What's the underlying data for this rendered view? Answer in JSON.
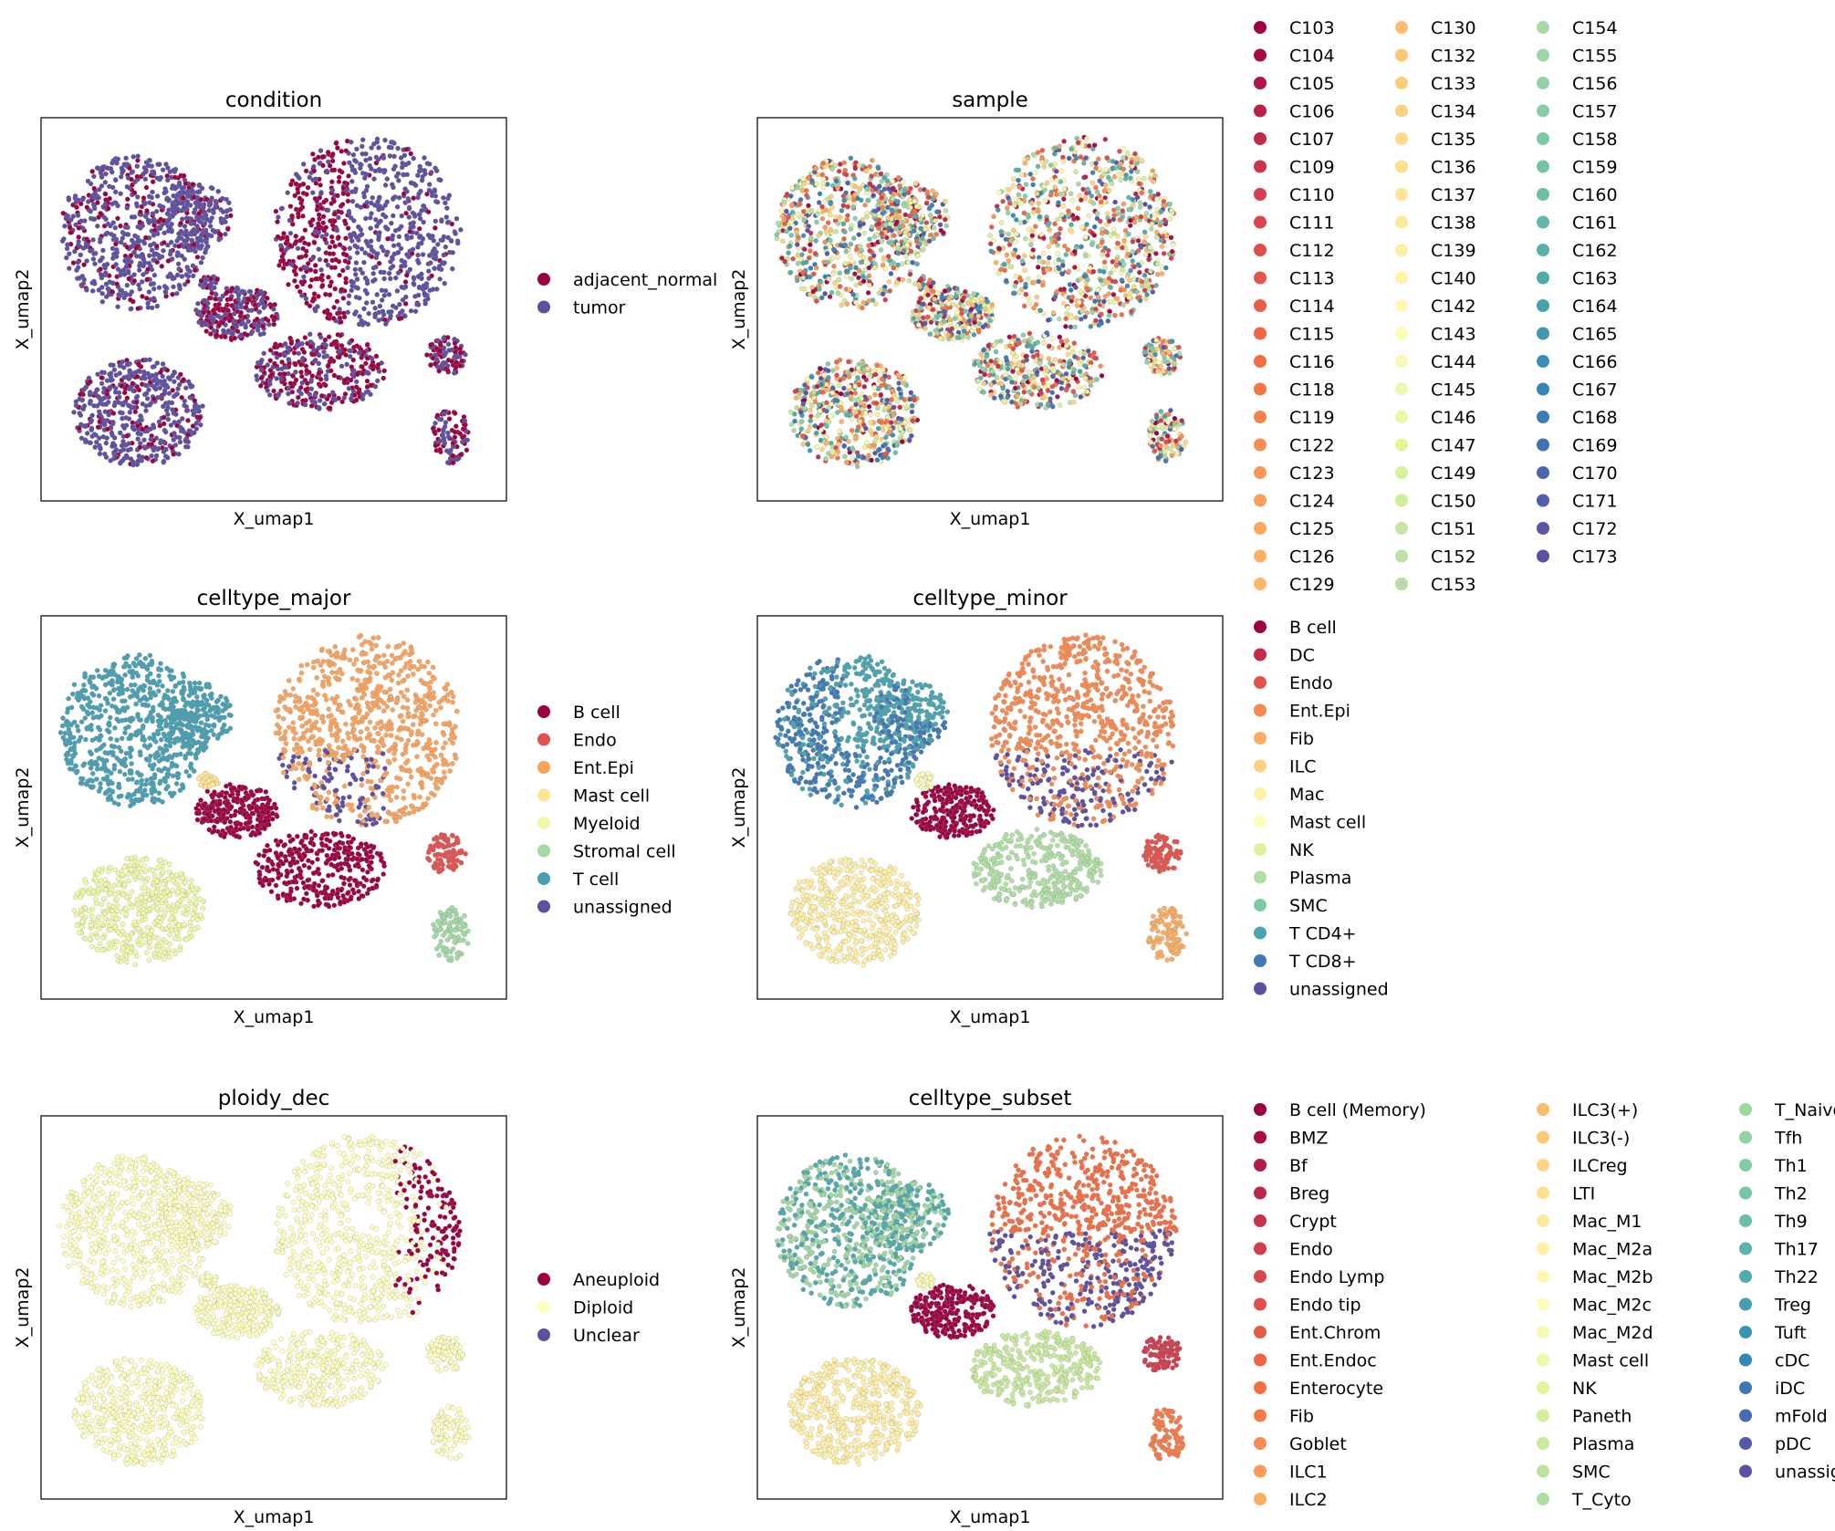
{
  "chart_data": [
    {
      "type": "scatter",
      "title": "condition",
      "xlabel": "X_umap1",
      "ylabel": "X_umap2",
      "grid": false,
      "legend_position": "right",
      "colors": {
        "base": "#5e4fa2",
        "accent": "#9e0142"
      },
      "categories": [
        {
          "label": "adjacent_normal",
          "color": "#9e0142"
        },
        {
          "label": "tumor",
          "color": "#5e4fa2"
        }
      ]
    },
    {
      "type": "scatter",
      "title": "sample",
      "xlabel": "X_umap1",
      "ylabel": "X_umap2",
      "grid": false,
      "legend_position": "right",
      "colors": {
        "base": "#e6f598",
        "accent": "#f46d43"
      },
      "categories": [
        {
          "label": "C103",
          "color": "#9e0142"
        },
        {
          "label": "C104",
          "color": "#a70b44"
        },
        {
          "label": "C105",
          "color": "#b11546"
        },
        {
          "label": "C106",
          "color": "#ba1f48"
        },
        {
          "label": "C107",
          "color": "#c3294a"
        },
        {
          "label": "C109",
          "color": "#cc334c"
        },
        {
          "label": "C110",
          "color": "#d53e4f"
        },
        {
          "label": "C111",
          "color": "#da464d"
        },
        {
          "label": "C112",
          "color": "#df4e4b"
        },
        {
          "label": "C113",
          "color": "#e4564a"
        },
        {
          "label": "C114",
          "color": "#e95d47"
        },
        {
          "label": "C115",
          "color": "#ef6545"
        },
        {
          "label": "C116",
          "color": "#f46d43"
        },
        {
          "label": "C118",
          "color": "#f57748"
        },
        {
          "label": "C119",
          "color": "#f7814c"
        },
        {
          "label": "C122",
          "color": "#f88c51"
        },
        {
          "label": "C123",
          "color": "#f99555"
        },
        {
          "label": "C124",
          "color": "#fa9e5a"
        },
        {
          "label": "C125",
          "color": "#fca75e"
        },
        {
          "label": "C126",
          "color": "#fdb063"
        },
        {
          "label": "C129",
          "color": "#fdb768"
        },
        {
          "label": "C130",
          "color": "#fdbe6e"
        },
        {
          "label": "C132",
          "color": "#fdc574"
        },
        {
          "label": "C133",
          "color": "#fdcc7a"
        },
        {
          "label": "C134",
          "color": "#fed380"
        },
        {
          "label": "C135",
          "color": "#feda86"
        },
        {
          "label": "C136",
          "color": "#fee08b"
        },
        {
          "label": "C137",
          "color": "#fee593"
        },
        {
          "label": "C138",
          "color": "#feea9b"
        },
        {
          "label": "C139",
          "color": "#ffefa3"
        },
        {
          "label": "C140",
          "color": "#fff4ab"
        },
        {
          "label": "C142",
          "color": "#fff9b3"
        },
        {
          "label": "C143",
          "color": "#fbfcb7"
        },
        {
          "label": "C144",
          "color": "#f6fab3"
        },
        {
          "label": "C145",
          "color": "#f0f8ae"
        },
        {
          "label": "C146",
          "color": "#ebf6a9"
        },
        {
          "label": "C147",
          "color": "#e6f598"
        },
        {
          "label": "C149",
          "color": "#dbf09b"
        },
        {
          "label": "C150",
          "color": "#d0ec9e"
        },
        {
          "label": "C151",
          "color": "#c5e7a1"
        },
        {
          "label": "C152",
          "color": "#bbe3a4"
        },
        {
          "label": "C153",
          "color": "#b0dea6"
        },
        {
          "label": "C154",
          "color": "#a6daa6"
        },
        {
          "label": "C155",
          "color": "#9cd6a5"
        },
        {
          "label": "C156",
          "color": "#92d2a4"
        },
        {
          "label": "C157",
          "color": "#88cea4"
        },
        {
          "label": "C158",
          "color": "#7ecaa4"
        },
        {
          "label": "C159",
          "color": "#74c5a5"
        },
        {
          "label": "C160",
          "color": "#6bbfa6"
        },
        {
          "label": "C161",
          "color": "#62b8a8"
        },
        {
          "label": "C162",
          "color": "#58b1a9"
        },
        {
          "label": "C163",
          "color": "#50a9ab"
        },
        {
          "label": "C164",
          "color": "#47a1ad"
        },
        {
          "label": "C165",
          "color": "#3f98b0"
        },
        {
          "label": "C166",
          "color": "#3a8fb4"
        },
        {
          "label": "C167",
          "color": "#3586b7"
        },
        {
          "label": "C168",
          "color": "#3a7cb7"
        },
        {
          "label": "C169",
          "color": "#4272b4"
        },
        {
          "label": "C170",
          "color": "#4a67b0"
        },
        {
          "label": "C171",
          "color": "#525dac"
        },
        {
          "label": "C172",
          "color": "#5956a7"
        },
        {
          "label": "C173",
          "color": "#5e4fa2"
        }
      ]
    },
    {
      "type": "scatter",
      "title": "celltype_major",
      "xlabel": "X_umap1",
      "ylabel": "X_umap2",
      "grid": false,
      "legend_position": "right",
      "categories": [
        {
          "label": "B cell",
          "color": "#9e0142"
        },
        {
          "label": "Endo",
          "color": "#e4514f"
        },
        {
          "label": "Ent.Epi",
          "color": "#fba35c"
        },
        {
          "label": "Mast cell",
          "color": "#fee593"
        },
        {
          "label": "Myeloid",
          "color": "#eff8a6"
        },
        {
          "label": "Stromal cell",
          "color": "#a2d9a4"
        },
        {
          "label": "T cell",
          "color": "#47a0b3"
        },
        {
          "label": "unassigned",
          "color": "#5e4fa2"
        }
      ]
    },
    {
      "type": "scatter",
      "title": "celltype_minor",
      "xlabel": "X_umap1",
      "ylabel": "X_umap2",
      "grid": false,
      "legend_position": "right",
      "categories": [
        {
          "label": "B cell",
          "color": "#9e0142"
        },
        {
          "label": "DC",
          "color": "#c8294b"
        },
        {
          "label": "Endo",
          "color": "#e4524e"
        },
        {
          "label": "Ent.Epi",
          "color": "#f88a50"
        },
        {
          "label": "Fib",
          "color": "#fcac61"
        },
        {
          "label": "ILC",
          "color": "#fdd27f"
        },
        {
          "label": "Mac",
          "color": "#fef0a5"
        },
        {
          "label": "Mast cell",
          "color": "#fcfebb"
        },
        {
          "label": "NK",
          "color": "#ddf1a0"
        },
        {
          "label": "Plasma",
          "color": "#b0dfa4"
        },
        {
          "label": "SMC",
          "color": "#7ccaa6"
        },
        {
          "label": "T CD4+",
          "color": "#4aa5b1"
        },
        {
          "label": "T CD8+",
          "color": "#3f79b6"
        },
        {
          "label": "unassigned",
          "color": "#5e4fa2"
        }
      ]
    },
    {
      "type": "scatter",
      "title": "ploidy_dec",
      "xlabel": "X_umap1",
      "ylabel": "X_umap2",
      "grid": false,
      "legend_position": "right",
      "categories": [
        {
          "label": "Aneuploid",
          "color": "#9e0142"
        },
        {
          "label": "Diploid",
          "color": "#ffffbf"
        },
        {
          "label": "Unclear",
          "color": "#5e4fa2"
        }
      ]
    },
    {
      "type": "scatter",
      "title": "celltype_subset",
      "xlabel": "X_umap1",
      "ylabel": "X_umap2",
      "grid": false,
      "legend_position": "right",
      "categories": [
        {
          "label": "B cell (Memory)",
          "color": "#9e0142"
        },
        {
          "label": "BMZ",
          "color": "#a80d44"
        },
        {
          "label": "Bf",
          "color": "#b21a47"
        },
        {
          "label": "Breg",
          "color": "#bc2649"
        },
        {
          "label": "Crypt",
          "color": "#c6334b"
        },
        {
          "label": "Endo",
          "color": "#d03e4e"
        },
        {
          "label": "Endo Lymp",
          "color": "#d9474d"
        },
        {
          "label": "Endo tip",
          "color": "#e0504b"
        },
        {
          "label": "Ent.Chrom",
          "color": "#e75a48"
        },
        {
          "label": "Ent.Endoc",
          "color": "#ee6445"
        },
        {
          "label": "Enterocyte",
          "color": "#f46d43"
        },
        {
          "label": "Fib",
          "color": "#f67b49"
        },
        {
          "label": "Goblet",
          "color": "#f88b51"
        },
        {
          "label": "ILC1",
          "color": "#fa9c58"
        },
        {
          "label": "ILC2",
          "color": "#fcae60"
        },
        {
          "label": "ILC3(+)",
          "color": "#fdbd6c"
        },
        {
          "label": "ILC3(-)",
          "color": "#fdca78"
        },
        {
          "label": "ILCreg",
          "color": "#fed683"
        },
        {
          "label": "LTI",
          "color": "#fee18e"
        },
        {
          "label": "Mac_M1",
          "color": "#fee99a"
        },
        {
          "label": "Mac_M2a",
          "color": "#fff0a6"
        },
        {
          "label": "Mac_M2b",
          "color": "#fff7b2"
        },
        {
          "label": "Mac_M2c",
          "color": "#fffcbc"
        },
        {
          "label": "Mac_M2d",
          "color": "#f7fbb2"
        },
        {
          "label": "Mast cell",
          "color": "#eef8a8"
        },
        {
          "label": "NK",
          "color": "#e4f49d"
        },
        {
          "label": "Paneth",
          "color": "#d6ee9b"
        },
        {
          "label": "Plasma",
          "color": "#c8e99e"
        },
        {
          "label": "SMC",
          "color": "#bbe3a1"
        },
        {
          "label": "T_Cyto",
          "color": "#adde a4"
        },
        {
          "label": "T_Naive",
          "color": "#a0d8a4"
        },
        {
          "label": "Tfh",
          "color": "#92d2a4"
        },
        {
          "label": "Th1",
          "color": "#84cca4"
        },
        {
          "label": "Th2",
          "color": "#77c6a5"
        },
        {
          "label": "Th9",
          "color": "#6abfa6"
        },
        {
          "label": "Th17",
          "color": "#5db4a9"
        },
        {
          "label": "Th22",
          "color": "#51aaab"
        },
        {
          "label": "Treg",
          "color": "#459fae"
        },
        {
          "label": "Tuft",
          "color": "#3a93b3"
        },
        {
          "label": "cDC",
          "color": "#3486b7"
        },
        {
          "label": "iDC",
          "color": "#3b79b5"
        },
        {
          "label": "mFold",
          "color": "#476ab1"
        },
        {
          "label": "pDC",
          "color": "#535ba9"
        },
        {
          "label": "unassigned",
          "color": "#5e4fa2"
        }
      ]
    }
  ]
}
